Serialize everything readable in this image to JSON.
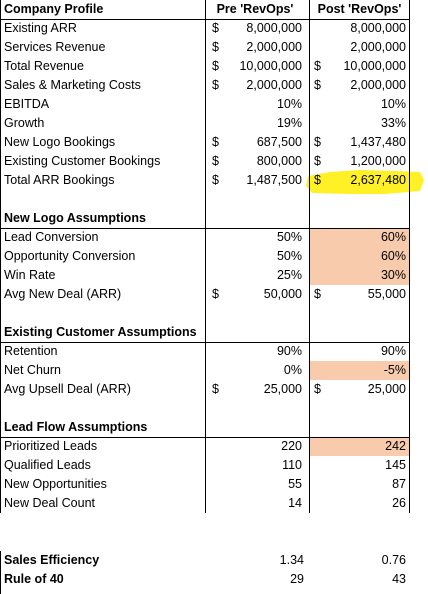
{
  "headers": {
    "label": "Company Profile",
    "pre": "Pre 'RevOps'",
    "post": "Post 'RevOps'"
  },
  "company_profile": [
    {
      "label": "Existing ARR",
      "pre_dollar": "$",
      "pre": "8,000,000",
      "post_dollar": "",
      "post": "8,000,000"
    },
    {
      "label": "Services Revenue",
      "pre_dollar": "$",
      "pre": "2,000,000",
      "post_dollar": "",
      "post": "2,000,000"
    },
    {
      "label": "Total Revenue",
      "pre_dollar": "$",
      "pre": "10,000,000",
      "post_dollar": "$",
      "post": "10,000,000"
    },
    {
      "label": "Sales & Marketing Costs",
      "pre_dollar": "$",
      "pre": "2,000,000",
      "post_dollar": "$",
      "post": "2,000,000"
    },
    {
      "label": "EBITDA",
      "pre_dollar": "",
      "pre": "10%",
      "post_dollar": "",
      "post": "10%"
    },
    {
      "label": "Growth",
      "pre_dollar": "",
      "pre": "19%",
      "post_dollar": "",
      "post": "33%"
    },
    {
      "label": "New Logo Bookings",
      "pre_dollar": "$",
      "pre": "687,500",
      "post_dollar": "$",
      "post": "1,437,480"
    },
    {
      "label": "Existing Customer Bookings",
      "pre_dollar": "$",
      "pre": "800,000",
      "post_dollar": "$",
      "post": "1,200,000"
    },
    {
      "label": "Total ARR Bookings",
      "pre_dollar": "$",
      "pre": "1,487,500",
      "post_dollar": "$",
      "post": "2,637,480"
    }
  ],
  "new_logo": {
    "title": "New Logo Assumptions",
    "rows": [
      {
        "label": "Lead Conversion",
        "pre_dollar": "",
        "pre": "50%",
        "post_dollar": "",
        "post": "60%"
      },
      {
        "label": "Opportunity Conversion",
        "pre_dollar": "",
        "pre": "50%",
        "post_dollar": "",
        "post": "60%"
      },
      {
        "label": "Win Rate",
        "pre_dollar": "",
        "pre": "25%",
        "post_dollar": "",
        "post": "30%"
      },
      {
        "label": "Avg New Deal (ARR)",
        "pre_dollar": "$",
        "pre": "50,000",
        "post_dollar": "$",
        "post": "55,000"
      }
    ]
  },
  "existing_customer": {
    "title": "Existing Customer Assumptions",
    "rows": [
      {
        "label": "Retention",
        "pre_dollar": "",
        "pre": "90%",
        "post_dollar": "",
        "post": "90%"
      },
      {
        "label": "Net Churn",
        "pre_dollar": "",
        "pre": "0%",
        "post_dollar": "",
        "post": "-5%"
      },
      {
        "label": "Avg Upsell Deal (ARR)",
        "pre_dollar": "$",
        "pre": "25,000",
        "post_dollar": "$",
        "post": "25,000"
      }
    ]
  },
  "lead_flow": {
    "title": "Lead Flow Assumptions",
    "rows": [
      {
        "label": "Prioritized Leads",
        "pre_dollar": "",
        "pre": "220",
        "post_dollar": "",
        "post": "242"
      },
      {
        "label": "Qualified Leads",
        "pre_dollar": "",
        "pre": "110",
        "post_dollar": "",
        "post": "145"
      },
      {
        "label": "New Opportunities",
        "pre_dollar": "",
        "pre": "55",
        "post_dollar": "",
        "post": "87"
      },
      {
        "label": "New Deal Count",
        "pre_dollar": "",
        "pre": "14",
        "post_dollar": "",
        "post": "26"
      }
    ]
  },
  "summary": [
    {
      "label": "Sales Efficiency",
      "pre": "1.34",
      "post": "0.76"
    },
    {
      "label": "Rule of 40",
      "pre": "29",
      "post": "43"
    }
  ],
  "colors": {
    "peach": "#f8cbad",
    "highlight": "#ffee00",
    "grid": "#000000"
  }
}
